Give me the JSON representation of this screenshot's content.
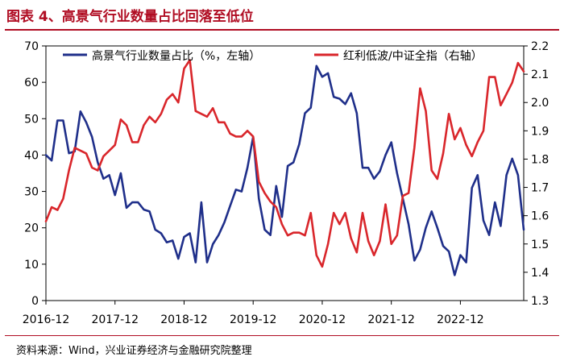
{
  "header": {
    "title": "图表 4、高景气行业数量占比回落至低位"
  },
  "footer": {
    "source": "资料来源：Wind，兴业证券经济与金融研究院整理"
  },
  "colors": {
    "series1": "#1f2f8a",
    "series2": "#d9262b",
    "accent": "#b00d23"
  },
  "chart_data": {
    "type": "line",
    "title": "高景气行业数量占比回落至低位",
    "xlabel": "",
    "ylabel": "%",
    "ylabel_right": "",
    "x_tick_labels": [
      "2016-12",
      "2017-12",
      "2018-12",
      "2019-12",
      "2020-12",
      "2021-12",
      "2022-12"
    ],
    "ylim": [
      0,
      70
    ],
    "yticks": [
      0,
      10,
      20,
      30,
      40,
      50,
      60,
      70
    ],
    "ylim_right": [
      1.3,
      2.2
    ],
    "yticks_right": [
      "1.3",
      "1.4",
      "1.5",
      "1.6",
      "1.7",
      "1.8",
      "1.9",
      "2.0",
      "2.1",
      "2.2"
    ],
    "x_start": "2016-12",
    "x_step": "month",
    "series": [
      {
        "name": "高景气行业数量占比（%，左轴）",
        "axis": "left",
        "color": "#1f2f8a",
        "values": [
          40,
          38.5,
          49.5,
          49.5,
          40.5,
          41,
          52,
          49,
          45,
          38,
          33.5,
          34.5,
          29,
          35,
          25.5,
          27,
          27,
          25,
          24.5,
          19.5,
          18.5,
          16,
          16.5,
          11.5,
          17.5,
          18.5,
          10.5,
          27,
          10.5,
          15.5,
          18,
          21.5,
          26,
          30.5,
          30,
          36.5,
          45,
          28,
          19.5,
          18,
          31.5,
          23,
          37,
          38,
          43,
          51.5,
          53,
          64.5,
          61.5,
          62.5,
          56,
          55.5,
          54,
          57,
          51.5,
          36.5,
          36.5,
          33.5,
          35.5,
          40,
          43.5,
          35,
          28,
          21,
          11,
          14,
          20,
          24.5,
          20,
          15,
          13.5,
          7,
          12.5,
          10.5,
          31,
          34.5,
          22,
          18,
          27,
          20.5,
          34.5,
          39,
          34.5,
          19.5
        ]
      },
      {
        "name": "红利低波/中证全指（右轴）",
        "axis": "right",
        "color": "#d9262b",
        "values": [
          1.58,
          1.63,
          1.62,
          1.66,
          1.76,
          1.84,
          1.83,
          1.82,
          1.77,
          1.76,
          1.81,
          1.83,
          1.85,
          1.94,
          1.92,
          1.86,
          1.86,
          1.92,
          1.95,
          1.93,
          1.96,
          2.01,
          2.03,
          2.0,
          2.12,
          2.15,
          1.97,
          1.96,
          1.95,
          1.98,
          1.93,
          1.93,
          1.89,
          1.88,
          1.88,
          1.9,
          1.88,
          1.72,
          1.68,
          1.65,
          1.63,
          1.57,
          1.53,
          1.54,
          1.54,
          1.53,
          1.61,
          1.46,
          1.42,
          1.5,
          1.61,
          1.57,
          1.61,
          1.52,
          1.47,
          1.61,
          1.51,
          1.46,
          1.51,
          1.64,
          1.5,
          1.53,
          1.67,
          1.68,
          1.84,
          2.05,
          1.97,
          1.76,
          1.73,
          1.82,
          1.96,
          1.87,
          1.91,
          1.85,
          1.81,
          1.86,
          1.9,
          2.09,
          2.09,
          1.99,
          2.03,
          2.07,
          2.14,
          2.11
        ]
      }
    ],
    "legend": "top"
  }
}
